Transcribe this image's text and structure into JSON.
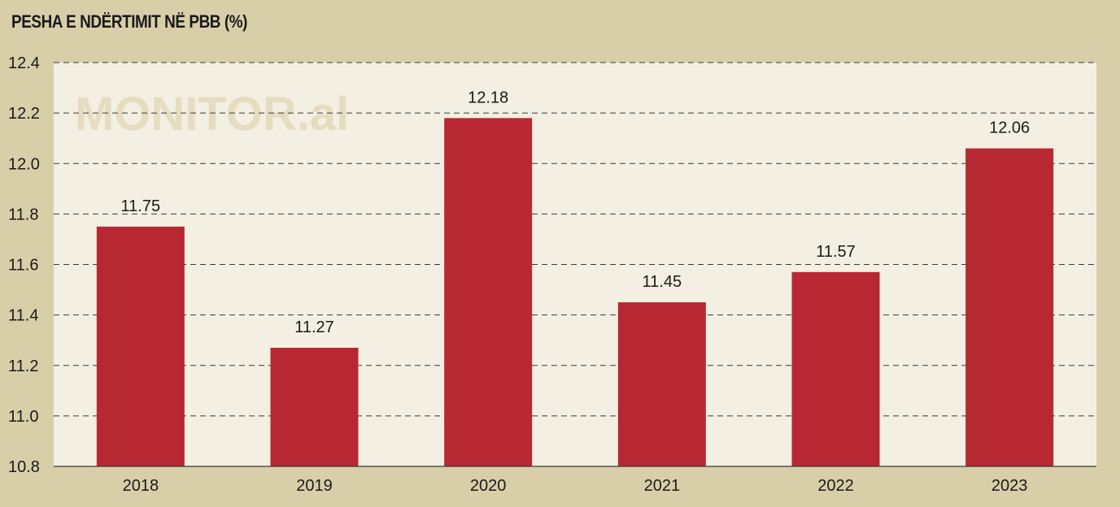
{
  "chart_data": {
    "type": "bar",
    "title": "PESHA E NDËRTIMIT NË PBB (%)",
    "watermark": "MONITOR.al",
    "categories": [
      "2018",
      "2019",
      "2020",
      "2021",
      "2022",
      "2023"
    ],
    "values": [
      11.75,
      11.27,
      12.18,
      11.45,
      11.57,
      12.06
    ],
    "data_labels": [
      "11.75",
      "11.27",
      "12.18",
      "11.45",
      "11.57",
      "12.06"
    ],
    "ylim": [
      10.8,
      12.4
    ],
    "yticks": [
      "10.8",
      "11.0",
      "11.2",
      "11.4",
      "11.6",
      "11.8",
      "12.0",
      "12.2",
      "12.4"
    ],
    "grid": "horizontal dashed",
    "legend": "none"
  },
  "colors": {
    "page_background": "#d8cfa9",
    "plot_background": "#f3efe2",
    "bar": "#b82832",
    "text": "#1a1a1a",
    "watermark": "#e6dcc0"
  }
}
